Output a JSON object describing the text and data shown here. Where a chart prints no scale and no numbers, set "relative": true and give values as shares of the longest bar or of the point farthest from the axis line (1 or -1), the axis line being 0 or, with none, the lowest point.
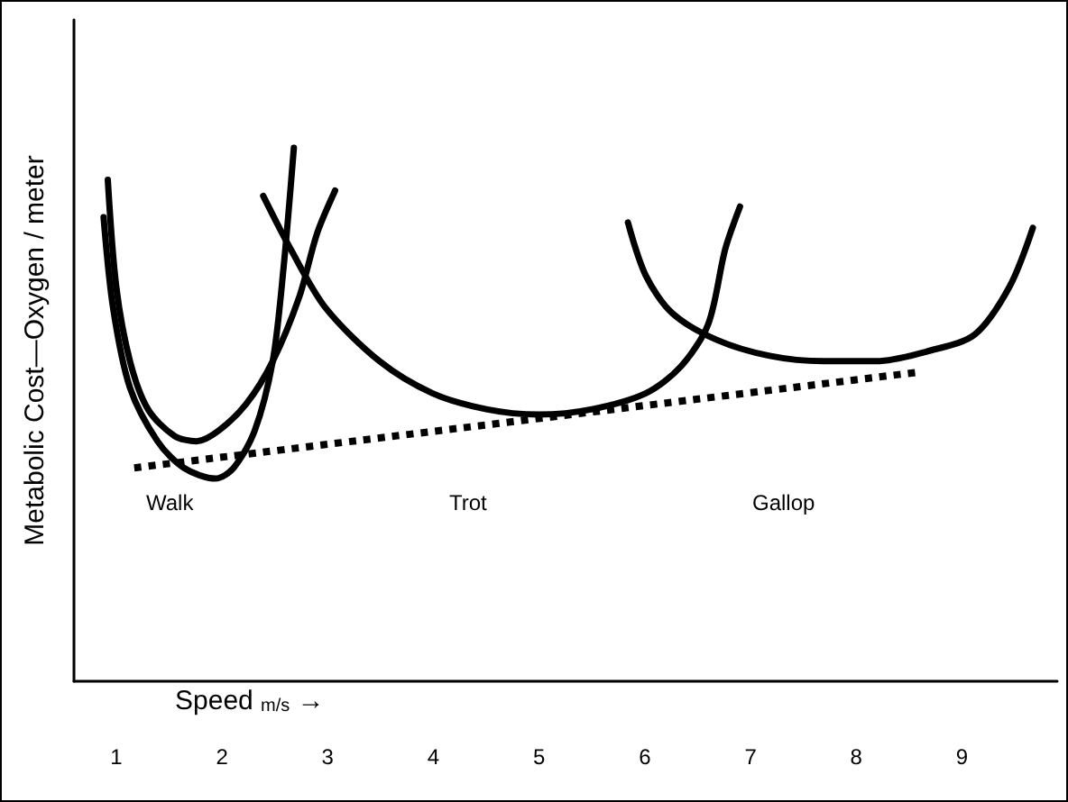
{
  "chart_data": {
    "type": "line",
    "relative": true,
    "xlabel": "Speed $_{m/s}$ →",
    "ylabel": "Metabolic Cost—Oxygen / meter",
    "xlim": [
      0.6,
      9.9
    ],
    "xticks": [
      1,
      2,
      3,
      4,
      5,
      6,
      7,
      8,
      9
    ],
    "marker": "none",
    "grid": false,
    "series": [
      {
        "color": "#000000",
        "line_style": "solid",
        "x": [
          0.92,
          1.0,
          1.13,
          1.3,
          1.55,
          1.76,
          1.97,
          2.23,
          2.48,
          2.73,
          2.9,
          3.07
        ],
        "values": [
          0.94,
          0.74,
          0.6,
          0.51,
          0.46,
          0.45,
          0.47,
          0.52,
          0.6,
          0.72,
          0.84,
          0.92
        ]
      },
      {
        "color": "#000000",
        "line_style": "solid",
        "x": [
          0.88,
          0.97,
          1.13,
          1.39,
          1.64,
          1.94,
          2.11,
          2.31,
          2.48,
          2.58,
          2.68
        ],
        "values": [
          0.87,
          0.7,
          0.55,
          0.45,
          0.4,
          0.38,
          0.4,
          0.47,
          0.6,
          0.77,
          1.0
        ]
      },
      {
        "color": "#000000",
        "line_style": "solid",
        "x": [
          2.39,
          2.65,
          2.98,
          3.49,
          3.99,
          4.5,
          5.0,
          5.5,
          6.01,
          6.34,
          6.6,
          6.76,
          6.9
        ],
        "values": [
          0.91,
          0.81,
          0.7,
          0.6,
          0.54,
          0.51,
          0.5,
          0.51,
          0.54,
          0.59,
          0.67,
          0.81,
          0.89
        ]
      },
      {
        "color": "#000000",
        "line_style": "solid",
        "x": [
          5.84,
          6.01,
          6.26,
          6.68,
          7.18,
          7.69,
          8.19,
          8.7,
          9.12,
          9.45,
          9.67
        ],
        "values": [
          0.86,
          0.76,
          0.69,
          0.64,
          0.61,
          0.6,
          0.6,
          0.62,
          0.65,
          0.74,
          0.85
        ]
      },
      {
        "color": "#000000",
        "line_style": "dotted",
        "x": [
          1.17,
          8.61
        ],
        "values": [
          0.4,
          0.58
        ]
      }
    ],
    "annotations": [
      "Walk",
      "Trot",
      "Gallop"
    ]
  }
}
